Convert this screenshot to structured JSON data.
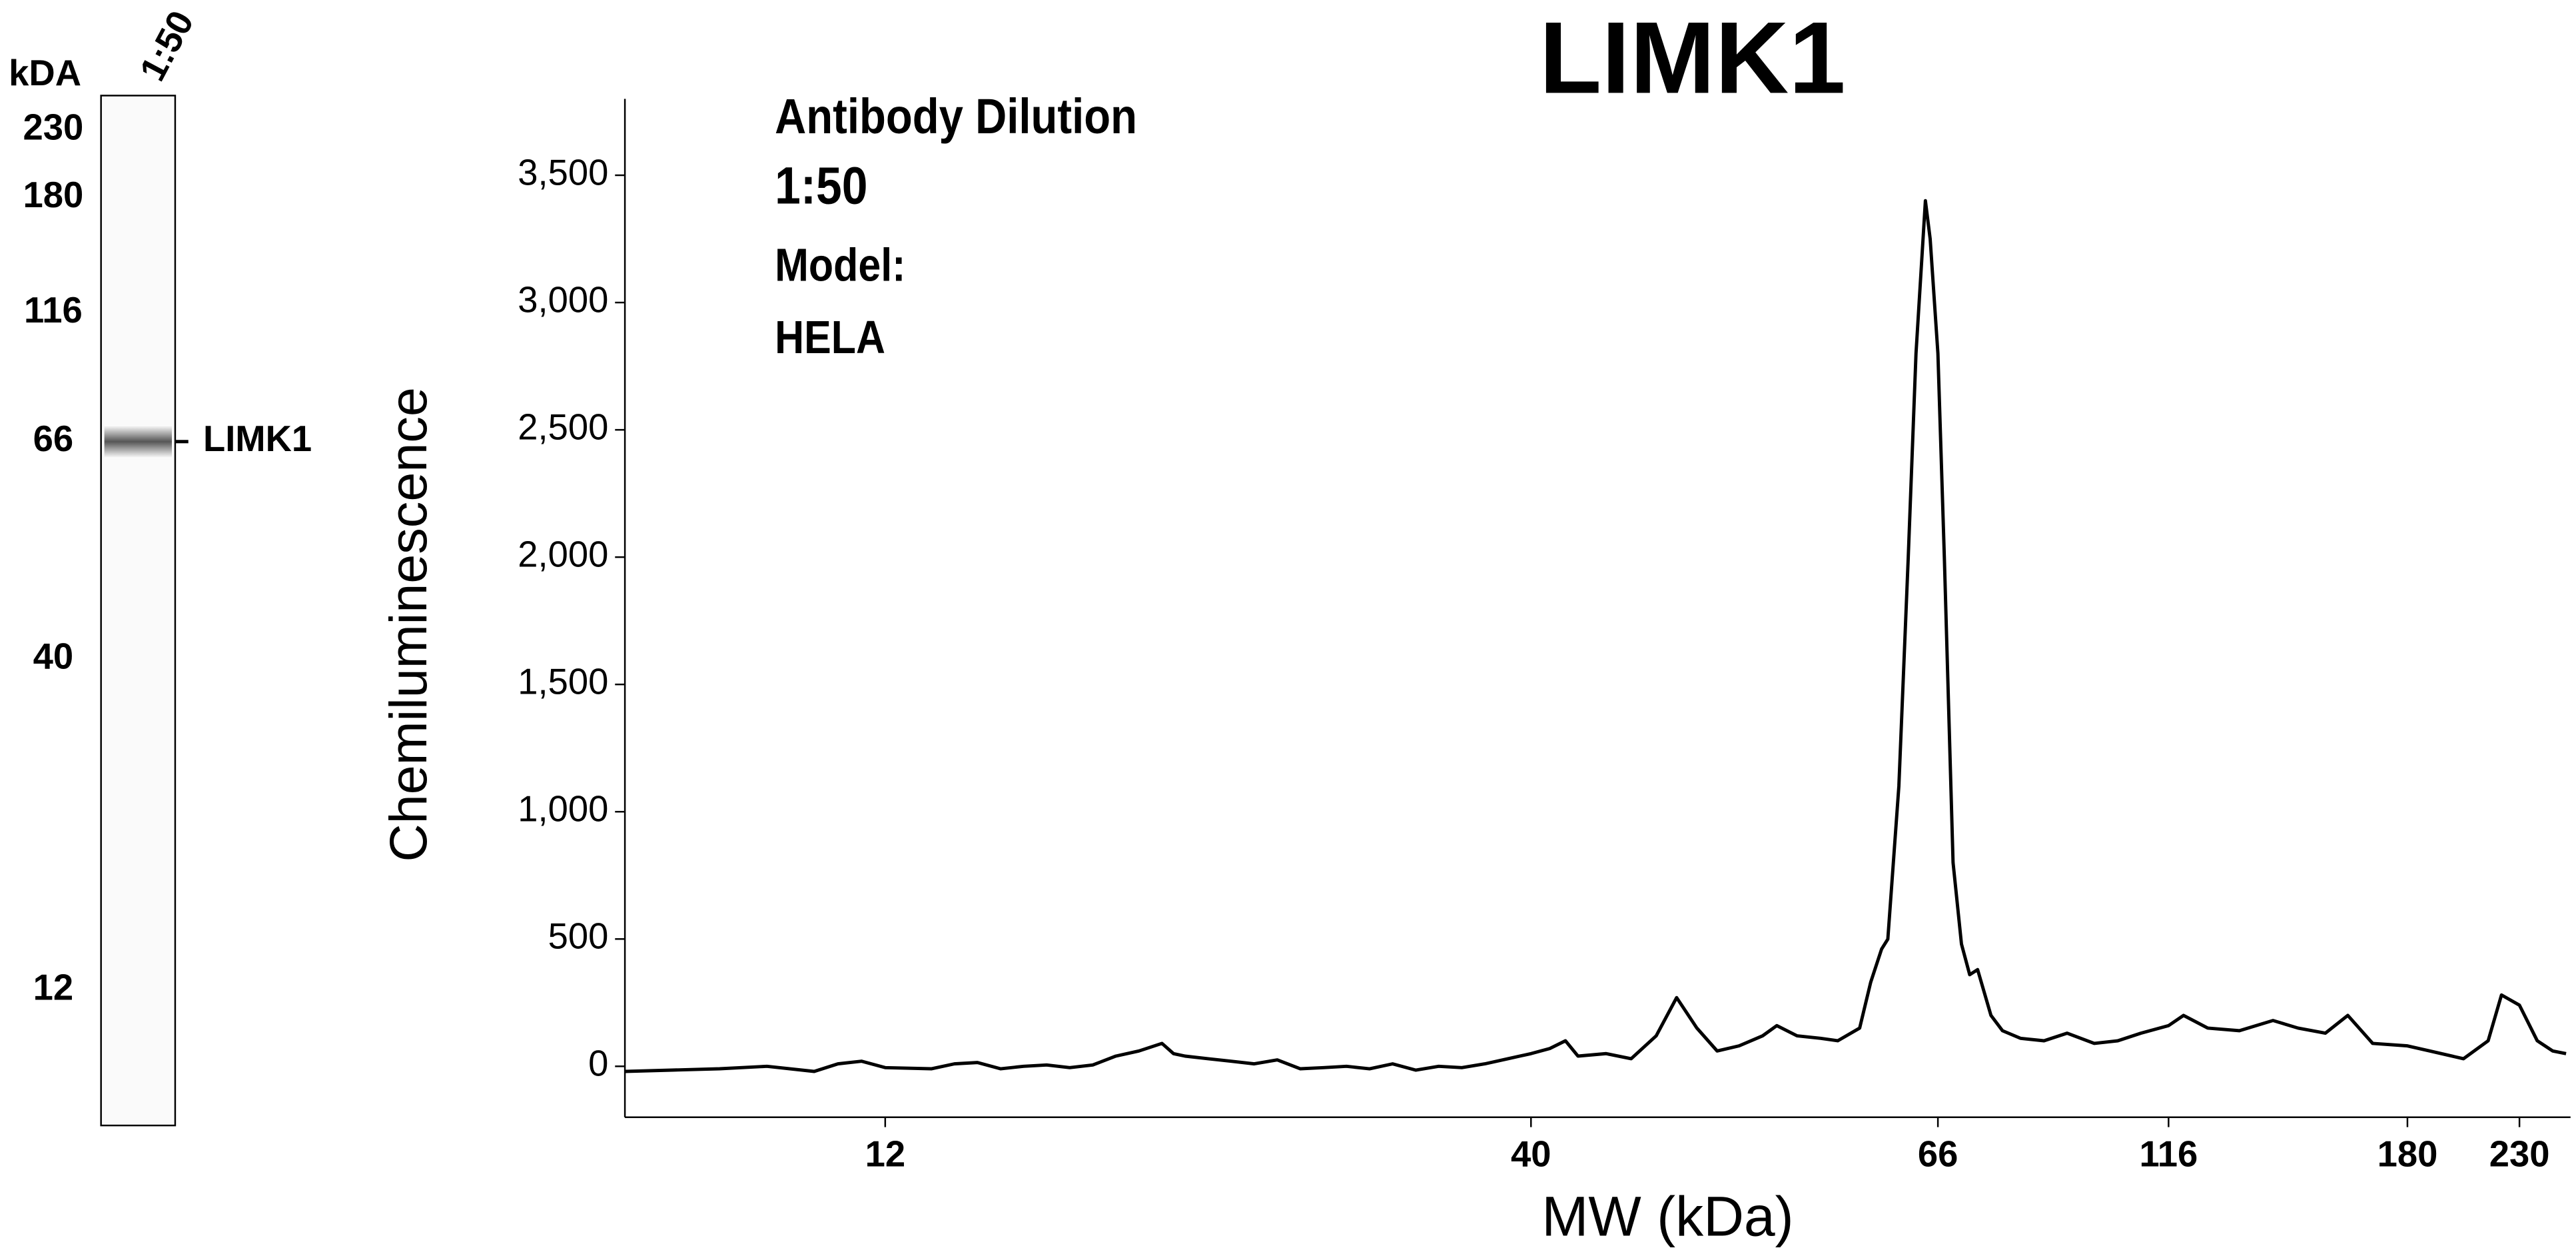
{
  "blot": {
    "unit_label": "kDA",
    "lane_label": "1:50",
    "markers": [
      "230",
      "180",
      "116",
      "66",
      "40",
      "12"
    ],
    "band_label": "LIMK1"
  },
  "chart_data": {
    "type": "line",
    "title": "LIMK1",
    "annotations": [
      "Antibody Dilution",
      "1:50",
      "Model:",
      "HELA"
    ],
    "y_label": "Chemiluminescence",
    "x_label": "MW (kDa)",
    "color": "#000000",
    "xlim": [
      1,
      253
    ],
    "xticks": [
      12,
      40,
      66,
      116,
      180,
      230
    ],
    "ylim": [
      -200,
      3800
    ],
    "yticks": [
      0,
      500,
      {
        "value": 1000,
        "label": "1,000"
      },
      {
        "value": 1500,
        "label": "1,500"
      },
      {
        "value": 2000,
        "label": "2,000"
      },
      {
        "value": 2500,
        "label": "2,500"
      },
      {
        "value": 3000,
        "label": "3,000"
      },
      {
        "value": 3500,
        "label": "3,500"
      }
    ],
    "x": [
      1,
      3,
      5,
      7,
      9,
      10,
      11,
      12,
      14,
      15,
      16,
      17,
      18,
      19,
      20,
      21,
      22,
      23,
      24,
      24.5,
      25,
      26,
      27,
      28,
      29,
      30,
      31,
      32,
      33,
      34,
      35,
      36,
      37,
      38,
      39,
      40,
      41.2,
      42.2,
      43,
      44.8,
      46.4,
      48,
      49.3,
      50.6,
      51.9,
      53.3,
      54.8,
      55.7,
      57,
      58.5,
      59.6,
      61,
      61.7,
      62.4,
      62.8,
      63.5,
      64.1,
      64.6,
      65.2,
      65.5,
      66,
      67.4,
      69.3,
      71.1,
      72.9,
      74.6,
      77.5,
      80,
      83.9,
      89,
      94,
      99.9,
      105,
      110,
      116,
      120,
      126.5,
      135,
      144,
      150.7,
      158,
      164,
      170.7,
      180,
      190,
      205,
      216,
      222,
      230,
      238,
      245,
      251
    ],
    "values": [
      -20,
      -15,
      -10,
      0,
      -20,
      10,
      20,
      -5,
      -10,
      10,
      15,
      -10,
      0,
      5,
      -5,
      5,
      40,
      60,
      90,
      50,
      40,
      30,
      20,
      10,
      25,
      -10,
      -5,
      0,
      -10,
      10,
      -15,
      0,
      -5,
      10,
      30,
      50,
      70,
      100,
      40,
      50,
      30,
      120,
      270,
      150,
      60,
      80,
      120,
      160,
      120,
      110,
      100,
      150,
      330,
      460,
      500,
      1100,
      2000,
      2800,
      3400,
      3250,
      2800,
      2000,
      800,
      480,
      360,
      380,
      200,
      140,
      110,
      100,
      130,
      90,
      100,
      130,
      160,
      200,
      150,
      140,
      180,
      150,
      130,
      200,
      90,
      80,
      60,
      30,
      100,
      280,
      240,
      100,
      60,
      50
    ]
  }
}
